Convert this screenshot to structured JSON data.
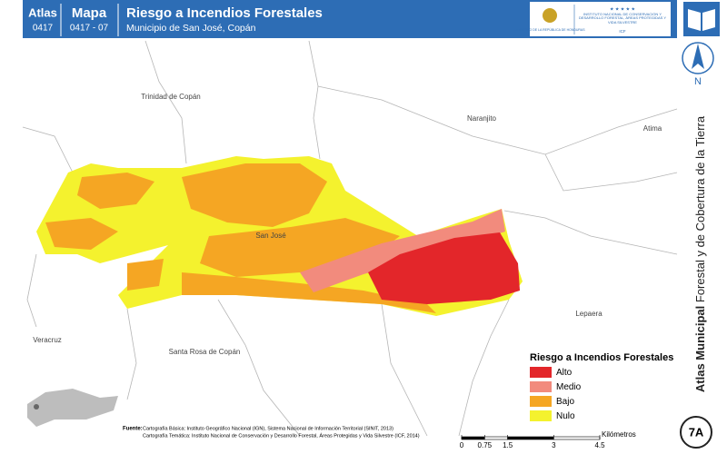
{
  "header": {
    "atlas_label": "Atlas",
    "atlas_code": "0417",
    "map_label": "Mapa",
    "map_code": "0417 - 07",
    "title": "Riesgo a Incendios Forestales",
    "subtitle": "Municipio de San José, Copán",
    "logo_left": "GOBIERNO DE LA REPÚBLICA DE HONDURAS",
    "logo_right_title": "INSTITUTO NACIONAL DE CONSERVACIÓN Y DESARROLLO FORESTAL, ÁREAS PROTEGIDAS Y VIDA SILVESTRE",
    "logo_right_code": "ICF"
  },
  "sidebar": {
    "north": "N",
    "title_bold": "Atlas Municipal",
    "title_rest": "Forestal y de Cobertura de la Tierra",
    "badge": "7A"
  },
  "places": [
    "Trinidad de Copán",
    "Naranjito",
    "Atima",
    "San José",
    "Veracruz",
    "Santa Rosa de Copán",
    "Lepaera"
  ],
  "legend": {
    "title": "Riesgo a Incendios Forestales",
    "items": [
      {
        "name": "Alto",
        "color": "#e3262a"
      },
      {
        "name": "Medio",
        "color": "#f28b7d"
      },
      {
        "name": "Bajo",
        "color": "#f5a623"
      },
      {
        "name": "Nulo",
        "color": "#f4f22e"
      }
    ]
  },
  "source": {
    "label": "Fuente:",
    "lines": [
      "Cartografía Básica: Instituto Geográfico Nacional (IGN), Sistema Nacional de Información Territorial (SINIT, 2013)",
      "Cartografía Temática: Instituto Nacional de Conservación y Desarrollo Forestal, Áreas Protegidas y Vida Silvestre (ICF, 2014)"
    ]
  },
  "scale_bar": {
    "ticks": [
      0,
      0.75,
      1.5,
      3,
      4.5
    ],
    "unit": "Kilómetros"
  }
}
